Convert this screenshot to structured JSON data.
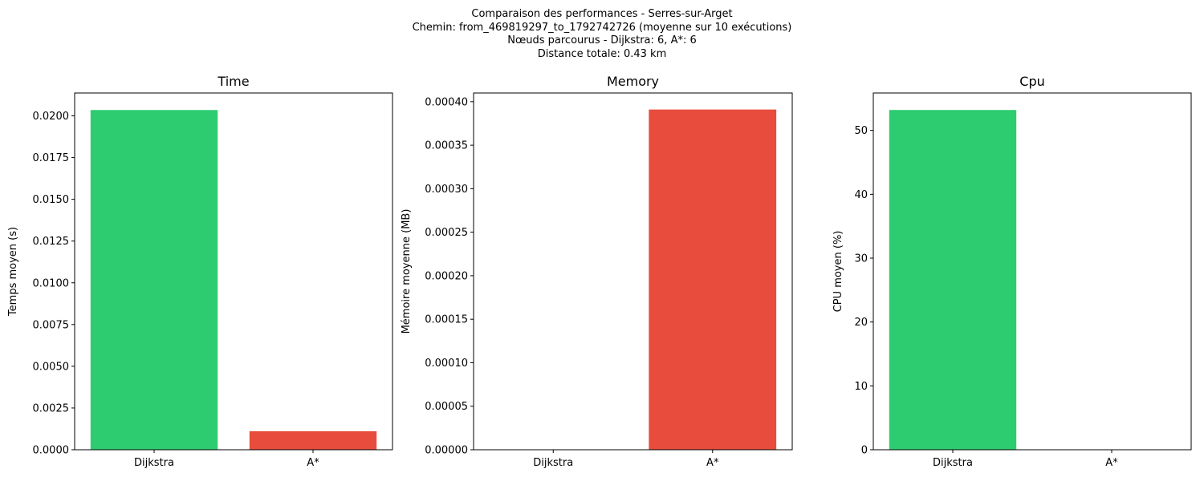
{
  "suptitle_lines": [
    "Comparaison des performances - Serres-sur-Arget",
    "Chemin: from_469819297_to_1792742726 (moyenne sur 10 exécutions)",
    "Nœuds parcourus - Dijkstra: 6, A*: 6",
    "Distance totale: 0.43 km"
  ],
  "colors": {
    "dijkstra": "#2ecc71",
    "astar": "#e74c3c"
  },
  "chart_data": [
    {
      "type": "bar",
      "title": "Time",
      "xlabel": "",
      "ylabel": "Temps moyen (s)",
      "categories": [
        "Dijkstra",
        "A*"
      ],
      "values": [
        0.02035,
        0.00111
      ],
      "ylim": [
        0,
        0.02137
      ],
      "yticks": [
        "0.0000",
        "0.0025",
        "0.0050",
        "0.0075",
        "0.0100",
        "0.0125",
        "0.0150",
        "0.0175",
        "0.0200"
      ],
      "grid": false
    },
    {
      "type": "bar",
      "title": "Memory",
      "xlabel": "",
      "ylabel": "Mémoire moyenne (MB)",
      "categories": [
        "Dijkstra",
        "A*"
      ],
      "values": [
        0,
        0.000391
      ],
      "ylim": [
        0,
        0.00041
      ],
      "yticks": [
        "0.00000",
        "0.00005",
        "0.00010",
        "0.00015",
        "0.00020",
        "0.00025",
        "0.00030",
        "0.00035",
        "0.00040"
      ],
      "grid": false
    },
    {
      "type": "bar",
      "title": "Cpu",
      "xlabel": "",
      "ylabel": "CPU moyen (%)",
      "categories": [
        "Dijkstra",
        "A*"
      ],
      "values": [
        53.2,
        0
      ],
      "ylim": [
        0,
        55.86
      ],
      "yticks": [
        "0",
        "10",
        "20",
        "30",
        "40",
        "50"
      ],
      "grid": false
    }
  ]
}
